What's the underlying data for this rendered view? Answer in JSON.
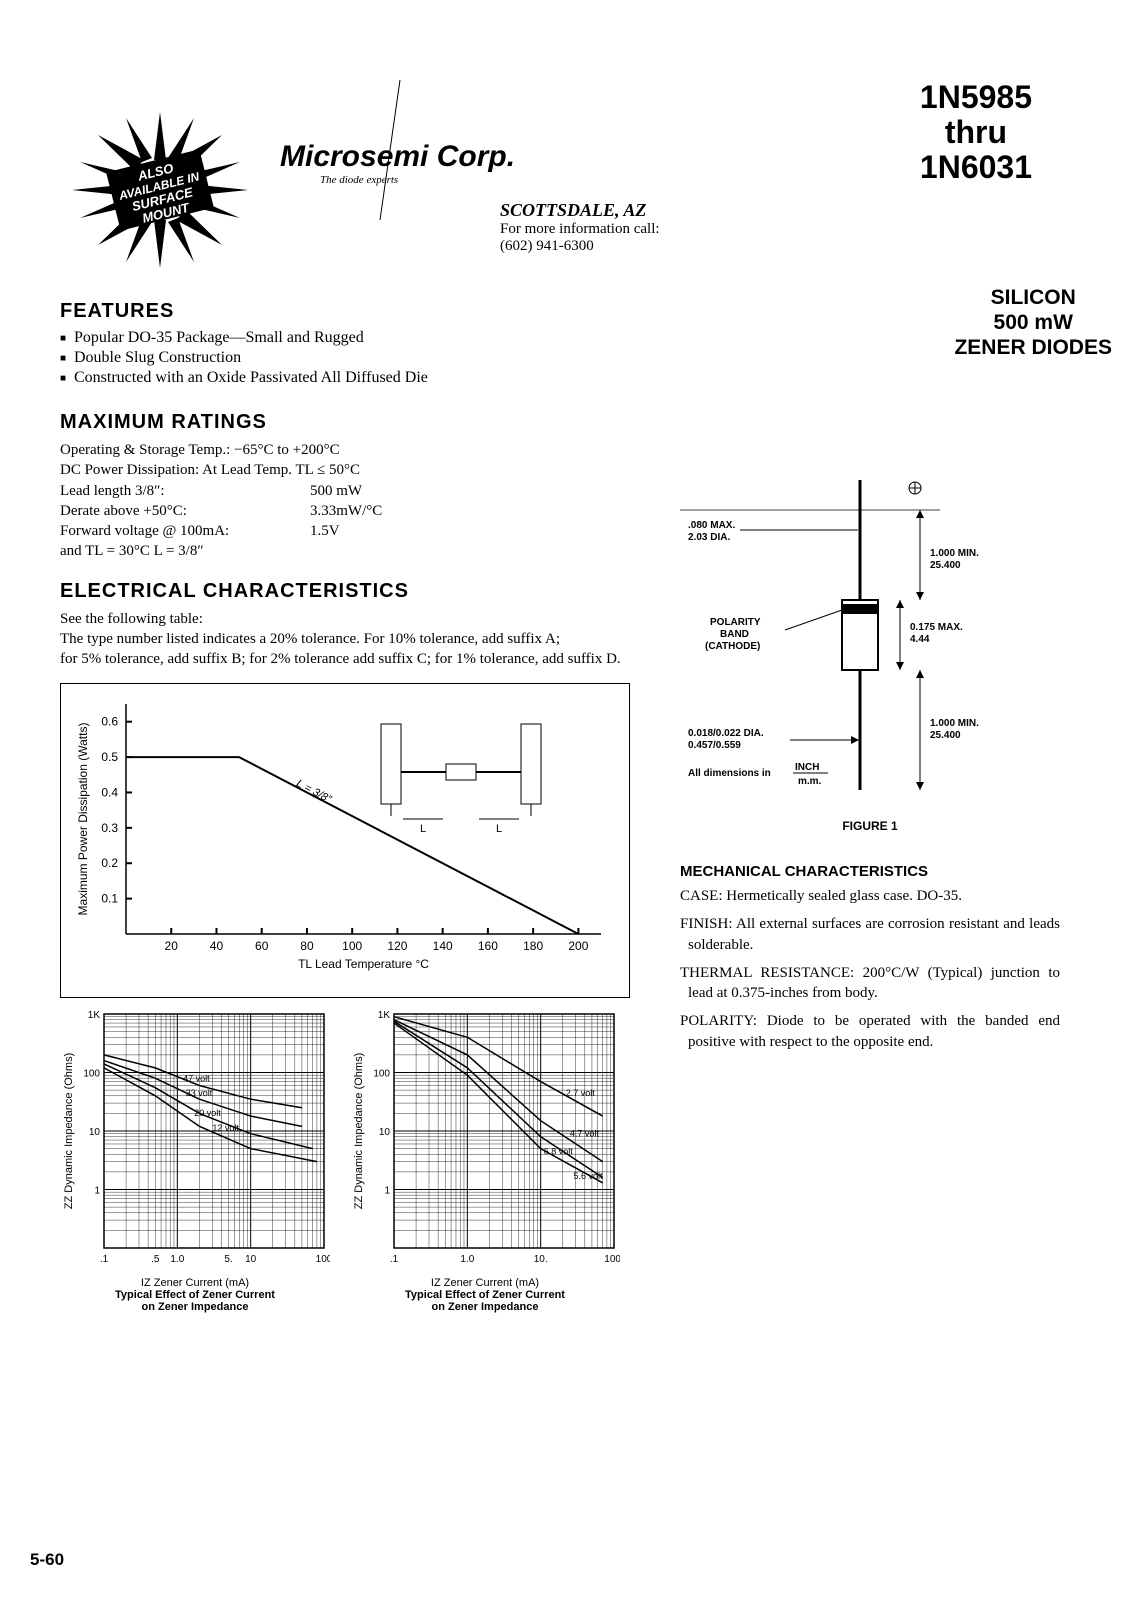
{
  "header": {
    "starburst_text": "ALSO AVAILABLE IN SURFACE MOUNT",
    "company_name": "Microsemi Corp.",
    "company_tagline": "The diode experts",
    "part_line1": "1N5985",
    "part_line2": "thru",
    "part_line3": "1N6031",
    "contact_city": "SCOTTSDALE, AZ",
    "contact_info_line": "For more information call:",
    "contact_phone": "(602) 941-6300",
    "type_line1": "SILICON",
    "type_line2": "500 mW",
    "type_line3": "ZENER DIODES"
  },
  "features": {
    "heading": "FEATURES",
    "items": [
      "Popular DO-35 Package—Small and Rugged",
      "Double Slug Construction",
      "Constructed with an Oxide Passivated All Diffused Die"
    ]
  },
  "ratings": {
    "heading": "MAXIMUM RATINGS",
    "line1": "Operating & Storage Temp.:  −65°C to +200°C",
    "line2": "DC Power Dissipation:  At Lead Temp. TL ≤ 50°C",
    "line3_label": "Lead length 3/8″:",
    "line3_value": "500 mW",
    "line4_label": "Derate above +50°C:",
    "line4_value": "3.33mW/°C",
    "line5_label": "Forward voltage @ 100mA:",
    "line5_value": "1.5V",
    "line6": "and TL = 30°C  L = 3/8″"
  },
  "electrical": {
    "heading": "ELECTRICAL CHARACTERISTICS",
    "line1": "See the following table:",
    "line2": "The type number listed indicates a 20% tolerance.  For 10% tolerance, add suffix A;",
    "line3": "for 5% tolerance, add suffix B; for 2% tolerance add suffix C; for 1% tolerance, add suffix D."
  },
  "derate_chart": {
    "type": "line",
    "x_label": "TL Lead Temperature °C",
    "y_label": "Maximum Power Dissipation (Watts)",
    "x_ticks": [
      20,
      40,
      60,
      80,
      100,
      120,
      140,
      160,
      180,
      200
    ],
    "y_ticks": [
      0.1,
      0.2,
      0.3,
      0.4,
      0.5,
      0.6
    ],
    "xlim": [
      0,
      210
    ],
    "ylim": [
      0,
      0.65
    ],
    "line_points_x": [
      0,
      50,
      200
    ],
    "line_points_y": [
      0.5,
      0.5,
      0.0
    ],
    "line_color": "#000000",
    "line_width": 2,
    "inset_label": "L = 3/8″",
    "inset_component_labels": [
      "L",
      "L"
    ]
  },
  "impedance_left": {
    "type": "loglog",
    "x_label": "IZ Zener Current (mA)",
    "y_label": "ZZ Dynamic Impedance (Ohms)",
    "x_ticks": [
      ".1",
      ".5",
      "1.0",
      "5.",
      "10",
      "100"
    ],
    "y_ticks": [
      "1",
      "10",
      "100",
      "1K"
    ],
    "curves": [
      "47 volt",
      "33 volt",
      "20 volt",
      "12 volt"
    ],
    "caption_title": "Typical Effect of Zener Current",
    "caption_sub": "on Zener Impedance"
  },
  "impedance_right": {
    "type": "loglog",
    "x_label": "IZ Zener Current (mA)",
    "y_label": "ZZ Dynamic Impedance (Ohms)",
    "x_ticks": [
      ".1",
      "1.0",
      "10.",
      "100."
    ],
    "y_ticks": [
      "1",
      "10",
      "100",
      "1K"
    ],
    "curves": [
      "2.7 volt",
      "4.7 volt",
      "6.8 volt",
      "5.6 volt"
    ],
    "caption_title": "Typical Effect of Zener Current",
    "caption_sub": "on Zener Impedance"
  },
  "package_fig": {
    "dim_dia_top": ".080 MAX.\n2.03 DIA.",
    "dim_lead_top": "1.000 MIN.\n25.400",
    "dim_body": "0.175 MAX.\n4.44",
    "dim_lead_bot": "1.000 MIN.\n25.400",
    "dim_lead_dia": "0.018/0.022 DIA.\n0.457/0.559",
    "polarity_label": "POLARITY BAND (CATHODE)",
    "units_line1": "All dimensions in",
    "units_line2a": "INCH",
    "units_line2b": "m.m.",
    "caption": "FIGURE 1"
  },
  "mechanical": {
    "heading": "MECHANICAL CHARACTERISTICS",
    "items": [
      {
        "label": "CASE:",
        "text": "Hermetically sealed glass case. DO-35."
      },
      {
        "label": "FINISH:",
        "text": "All external surfaces are corrosion resistant and leads solderable."
      },
      {
        "label": "THERMAL RESISTANCE:",
        "text": "200°C/W (Typical) junction to lead at 0.375-inches from body."
      },
      {
        "label": "POLARITY:",
        "text": "Diode to be operated with the banded end positive with respect to the opposite end."
      }
    ]
  },
  "page_number": "5-60"
}
